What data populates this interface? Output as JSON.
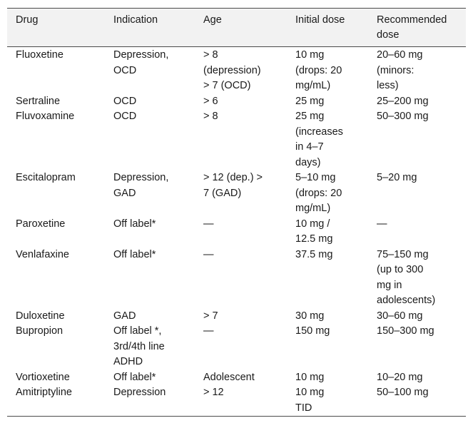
{
  "headers": [
    "Drug",
    "Indication",
    "Age",
    "Initial dose",
    "Recommended\ndose"
  ],
  "rows": [
    [
      "Fluoxetine",
      "Depression,\nOCD",
      "> 8\n(depression)\n> 7 (OCD)",
      "10 mg\n(drops: 20\nmg/mL)",
      "20–60 mg\n(minors:\nless)"
    ],
    [
      "Sertraline",
      "OCD",
      "> 6",
      "25 mg",
      "25–200 mg"
    ],
    [
      "Fluvoxamine",
      "OCD",
      "> 8",
      "25 mg\n(increases\nin 4–7\ndays)",
      "50–300 mg"
    ],
    [
      "Escitalopram",
      "Depression,\nGAD",
      "> 12 (dep.) >\n7 (GAD)",
      "5–10 mg\n(drops: 20\nmg/mL)",
      "5–20 mg"
    ],
    [
      "Paroxetine",
      "Off label*",
      "—",
      "10 mg /\n12.5 mg",
      "—"
    ],
    [
      "Venlafaxine",
      "Off label*",
      "—",
      "37.5 mg",
      "75–150 mg\n(up to 300\nmg in\nadolescents)"
    ],
    [
      "Duloxetine",
      "GAD",
      "> 7",
      "30 mg",
      "30–60 mg"
    ],
    [
      "Bupropion",
      "Off label *,\n3rd/4th line\nADHD",
      "—",
      "150 mg",
      "150–300 mg"
    ],
    [
      "Vortioxetine",
      "Off label*",
      "Adolescent",
      "10 mg",
      "10–20 mg"
    ],
    [
      "Amitriptyline",
      "Depression",
      "> 12",
      "10 mg\nTID",
      "50–100 mg"
    ]
  ]
}
